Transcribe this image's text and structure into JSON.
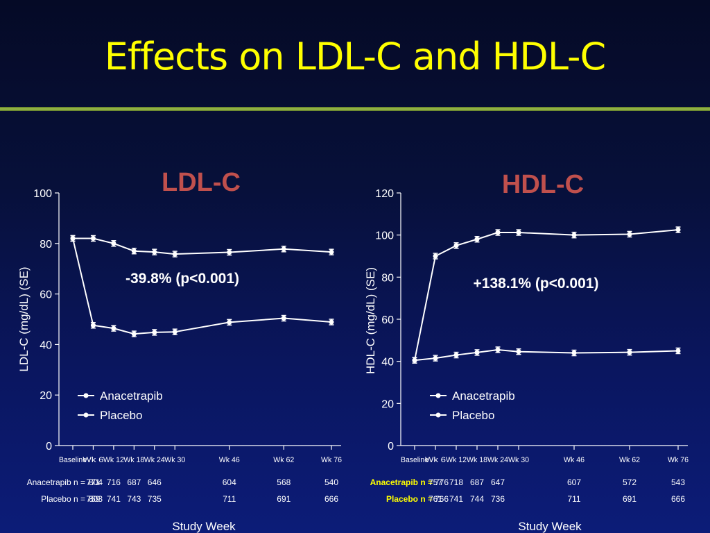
{
  "slide": {
    "title": "Effects on LDL-C and HDL-C"
  },
  "colors": {
    "title": "#ffff00",
    "chart_title": "#c0504d",
    "lines": "#ffffff",
    "background": "#0a1660"
  },
  "chart_data": [
    {
      "type": "line",
      "title": "LDL-C",
      "ylabel": "LDL-C (mg/dL) (SE)",
      "xlabel": "Study Week",
      "ylim": [
        0,
        100
      ],
      "yticks": [
        0,
        20,
        40,
        60,
        80,
        100
      ],
      "x_weeks": [
        0,
        6,
        12,
        18,
        24,
        30,
        46,
        62,
        76
      ],
      "categories": [
        "Baseline",
        "Wk 6",
        "Wk 12",
        "Wk 18",
        "Wk 24",
        "Wk 30",
        "Wk 46",
        "Wk 62",
        "Wk 76"
      ],
      "annotation": "-39.8% (p<0.001)",
      "legend": [
        "Anacetrapib",
        "Placebo"
      ],
      "series": [
        {
          "name": "Anacetrapib",
          "values": [
            82,
            47.6,
            46.4,
            44.2,
            44.8,
            45,
            48.8,
            50.4,
            48.9
          ]
        },
        {
          "name": "Placebo",
          "values": [
            82,
            82,
            80,
            77,
            76.6,
            75.8,
            76.5,
            77.8,
            76.6
          ]
        }
      ],
      "n_table": [
        {
          "label": "Anacetrapib n =",
          "values": [
            "804",
            "771",
            "716",
            "687",
            "646",
            "604",
            "568",
            "540"
          ]
        },
        {
          "label": "Placebo n =",
          "values": [
            "803",
            "759",
            "741",
            "743",
            "735",
            "711",
            "691",
            "666"
          ]
        }
      ]
    },
    {
      "type": "line",
      "title": "HDL-C",
      "ylabel": "HDL-C (mg/dL) (SE)",
      "xlabel": "Study Week",
      "ylim": [
        0,
        120
      ],
      "yticks": [
        0,
        20,
        40,
        60,
        80,
        100,
        120
      ],
      "x_weeks": [
        0,
        6,
        12,
        18,
        24,
        30,
        46,
        62,
        76
      ],
      "categories": [
        "Baseline",
        "Wk 6",
        "Wk 12",
        "Wk 18",
        "Wk 24",
        "Wk 30",
        "Wk 46",
        "Wk 62",
        "Wk 76"
      ],
      "annotation": "+138.1% (p<0.001)",
      "legend": [
        "Anacetrapib",
        "Placebo"
      ],
      "series": [
        {
          "name": "Anacetrapib",
          "values": [
            40.5,
            90,
            95,
            98,
            101.2,
            101.2,
            100,
            100.4,
            102.5
          ]
        },
        {
          "name": "Placebo",
          "values": [
            40.5,
            41.5,
            43,
            44.2,
            45.5,
            44.6,
            44,
            44.3,
            45
          ]
        }
      ],
      "n_table": [
        {
          "label": "Anacetrapib n =",
          "values": [
            "776",
            "757",
            "718",
            "687",
            "647",
            "607",
            "572",
            "543"
          ]
        },
        {
          "label": "Placebo n =",
          "values": [
            "766",
            "761",
            "741",
            "744",
            "736",
            "711",
            "691",
            "666"
          ]
        }
      ]
    }
  ]
}
